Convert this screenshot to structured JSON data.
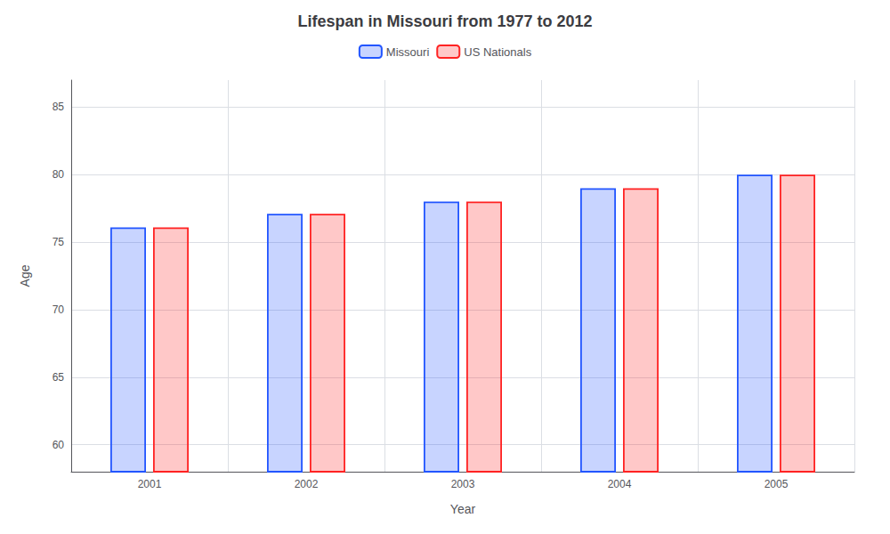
{
  "chart_data": {
    "type": "bar",
    "title": "Lifespan in Missouri from 1977 to 2012",
    "xlabel": "Year",
    "ylabel": "Age",
    "categories": [
      "2001",
      "2002",
      "2003",
      "2004",
      "2005"
    ],
    "series": [
      {
        "name": "Missouri",
        "color": "#2255ff",
        "values": [
          76.1,
          77.1,
          78.0,
          79.0,
          80.0
        ]
      },
      {
        "name": "US Nationals",
        "color": "#ff2222",
        "values": [
          76.1,
          77.1,
          78.0,
          79.0,
          80.0
        ]
      }
    ],
    "ylim": [
      58,
      87
    ],
    "yticks": [
      60,
      65,
      70,
      75,
      80,
      85
    ],
    "grid": true,
    "legend": "top"
  }
}
